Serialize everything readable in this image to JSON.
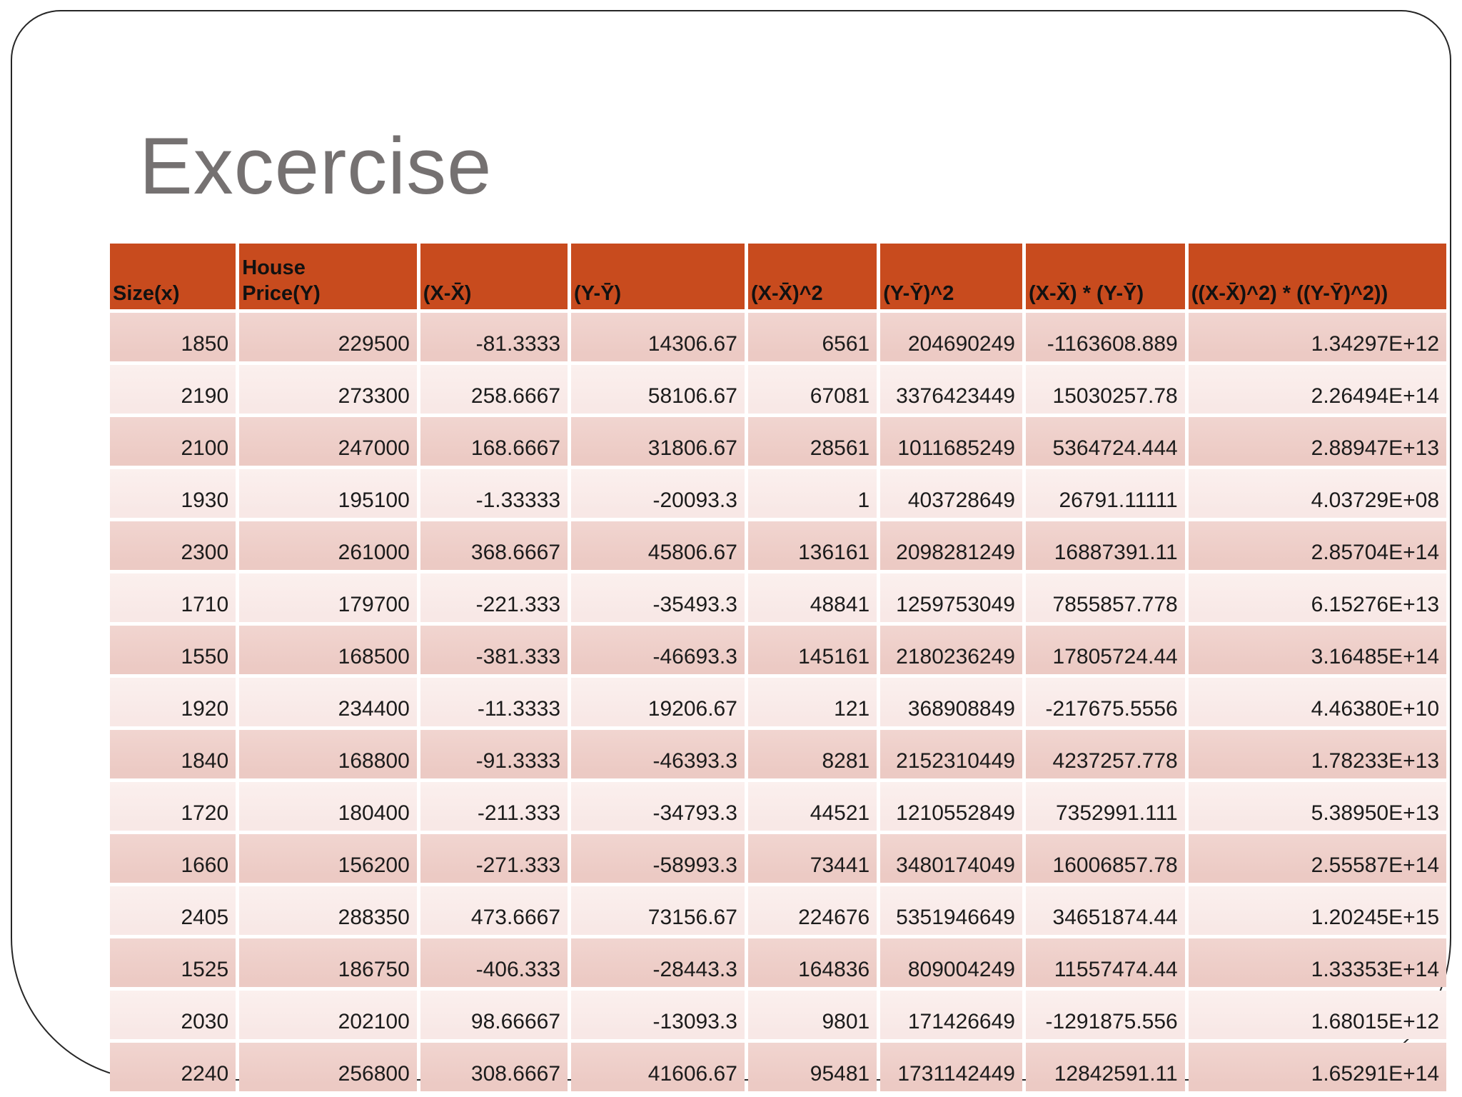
{
  "slide": {
    "title": "Excercise",
    "title_color": "#757171",
    "border_color": "#262626",
    "background": "#ffffff"
  },
  "table": {
    "header_bg": "#C84B1E",
    "row_bg_odd": "#ECCAC4",
    "row_bg_even": "#F8E8E6",
    "columns": [
      "Size(x)",
      "House\nPrice(Y)",
      "(X-X̄)",
      "(Y-Ȳ)",
      "(X-X̄)^2",
      "(Y-Ȳ)^2",
      "(X-X̄) * (Y-Ȳ)",
      "((X-X̄)^2) * ((Y-Ȳ)^2))"
    ],
    "rows": [
      [
        "1850",
        "229500",
        "-81.3333",
        "14306.67",
        "6561",
        "204690249",
        "-1163608.889",
        "1.34297E+12"
      ],
      [
        "2190",
        "273300",
        "258.6667",
        "58106.67",
        "67081",
        "3376423449",
        "15030257.78",
        "2.26494E+14"
      ],
      [
        "2100",
        "247000",
        "168.6667",
        "31806.67",
        "28561",
        "1011685249",
        "5364724.444",
        "2.88947E+13"
      ],
      [
        "1930",
        "195100",
        "-1.33333",
        "-20093.3",
        "1",
        "403728649",
        "26791.11111",
        "4.03729E+08"
      ],
      [
        "2300",
        "261000",
        "368.6667",
        "45806.67",
        "136161",
        "2098281249",
        "16887391.11",
        "2.85704E+14"
      ],
      [
        "1710",
        "179700",
        "-221.333",
        "-35493.3",
        "48841",
        "1259753049",
        "7855857.778",
        "6.15276E+13"
      ],
      [
        "1550",
        "168500",
        "-381.333",
        "-46693.3",
        "145161",
        "2180236249",
        "17805724.44",
        "3.16485E+14"
      ],
      [
        "1920",
        "234400",
        "-11.3333",
        "19206.67",
        "121",
        "368908849",
        "-217675.5556",
        "4.46380E+10"
      ],
      [
        "1840",
        "168800",
        "-91.3333",
        "-46393.3",
        "8281",
        "2152310449",
        "4237257.778",
        "1.78233E+13"
      ],
      [
        "1720",
        "180400",
        "-211.333",
        "-34793.3",
        "44521",
        "1210552849",
        "7352991.111",
        "5.38950E+13"
      ],
      [
        "1660",
        "156200",
        "-271.333",
        "-58993.3",
        "73441",
        "3480174049",
        "16006857.78",
        "2.55587E+14"
      ],
      [
        "2405",
        "288350",
        "473.6667",
        "73156.67",
        "224676",
        "5351946649",
        "34651874.44",
        "1.20245E+15"
      ],
      [
        "1525",
        "186750",
        "-406.333",
        "-28443.3",
        "164836",
        "809004249",
        "11557474.44",
        "1.33353E+14"
      ],
      [
        "2030",
        "202100",
        "98.66667",
        "-13093.3",
        "9801",
        "171426649",
        "-1291875.556",
        "1.68015E+12"
      ],
      [
        "2240",
        "256800",
        "308.6667",
        "41606.67",
        "95481",
        "1731142449",
        "12842591.11",
        "1.65291E+14"
      ]
    ]
  }
}
